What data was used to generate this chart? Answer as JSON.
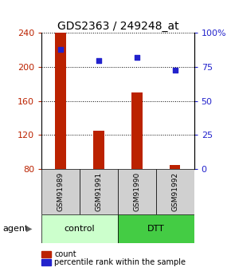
{
  "title": "GDS2363 / 249248_at",
  "samples": [
    "GSM91989",
    "GSM91991",
    "GSM91990",
    "GSM91992"
  ],
  "counts": [
    240,
    125,
    170,
    85
  ],
  "percentiles": [
    88,
    80,
    82,
    73
  ],
  "ylim_left": [
    80,
    240
  ],
  "ylim_right": [
    0,
    100
  ],
  "yticks_left": [
    80,
    120,
    160,
    200,
    240
  ],
  "yticks_right": [
    0,
    25,
    50,
    75,
    100
  ],
  "yticklabels_right": [
    "0",
    "25",
    "50",
    "75",
    "100%"
  ],
  "bar_color": "#bb2200",
  "dot_color": "#2222cc",
  "group_labels": [
    "control",
    "DTT"
  ],
  "group_color_control": "#ccffcc",
  "group_color_dtt": "#44cc44",
  "agent_label": "agent",
  "legend_count": "count",
  "legend_pct": "percentile rank within the sample",
  "title_fontsize": 10,
  "tick_fontsize": 8,
  "sample_fontsize": 6.5,
  "group_fontsize": 8,
  "legend_fontsize": 7,
  "agent_fontsize": 8
}
